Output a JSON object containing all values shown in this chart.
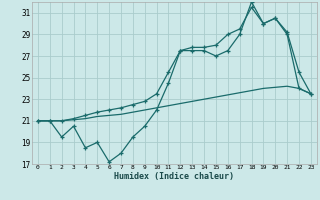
{
  "xlabel": "Humidex (Indice chaleur)",
  "ylim": [
    17,
    32
  ],
  "xlim": [
    -0.5,
    23.5
  ],
  "yticks": [
    17,
    19,
    21,
    23,
    25,
    27,
    29,
    31
  ],
  "xticks": [
    0,
    1,
    2,
    3,
    4,
    5,
    6,
    7,
    8,
    9,
    10,
    11,
    12,
    13,
    14,
    15,
    16,
    17,
    18,
    19,
    20,
    21,
    22,
    23
  ],
  "bg_color": "#cce8e8",
  "grid_color": "#aacccc",
  "line_color": "#1a6b6b",
  "line1_y": [
    21.0,
    21.0,
    19.5,
    20.5,
    18.5,
    19.0,
    17.2,
    18.0,
    19.5,
    20.5,
    22.0,
    24.5,
    27.5,
    27.5,
    27.5,
    27.0,
    27.5,
    29.0,
    32.0,
    30.0,
    30.5,
    29.0,
    24.0,
    23.5
  ],
  "line2_y": [
    21.0,
    21.0,
    21.0,
    21.1,
    21.2,
    21.4,
    21.5,
    21.6,
    21.8,
    22.0,
    22.2,
    22.4,
    22.6,
    22.8,
    23.0,
    23.2,
    23.4,
    23.6,
    23.8,
    24.0,
    24.1,
    24.2,
    24.0,
    23.5
  ],
  "line3_y": [
    21.0,
    21.0,
    21.0,
    21.2,
    21.5,
    21.8,
    22.0,
    22.2,
    22.5,
    22.8,
    23.5,
    25.5,
    27.5,
    27.8,
    27.8,
    28.0,
    29.0,
    29.5,
    31.5,
    30.0,
    30.5,
    29.2,
    25.5,
    23.5
  ]
}
